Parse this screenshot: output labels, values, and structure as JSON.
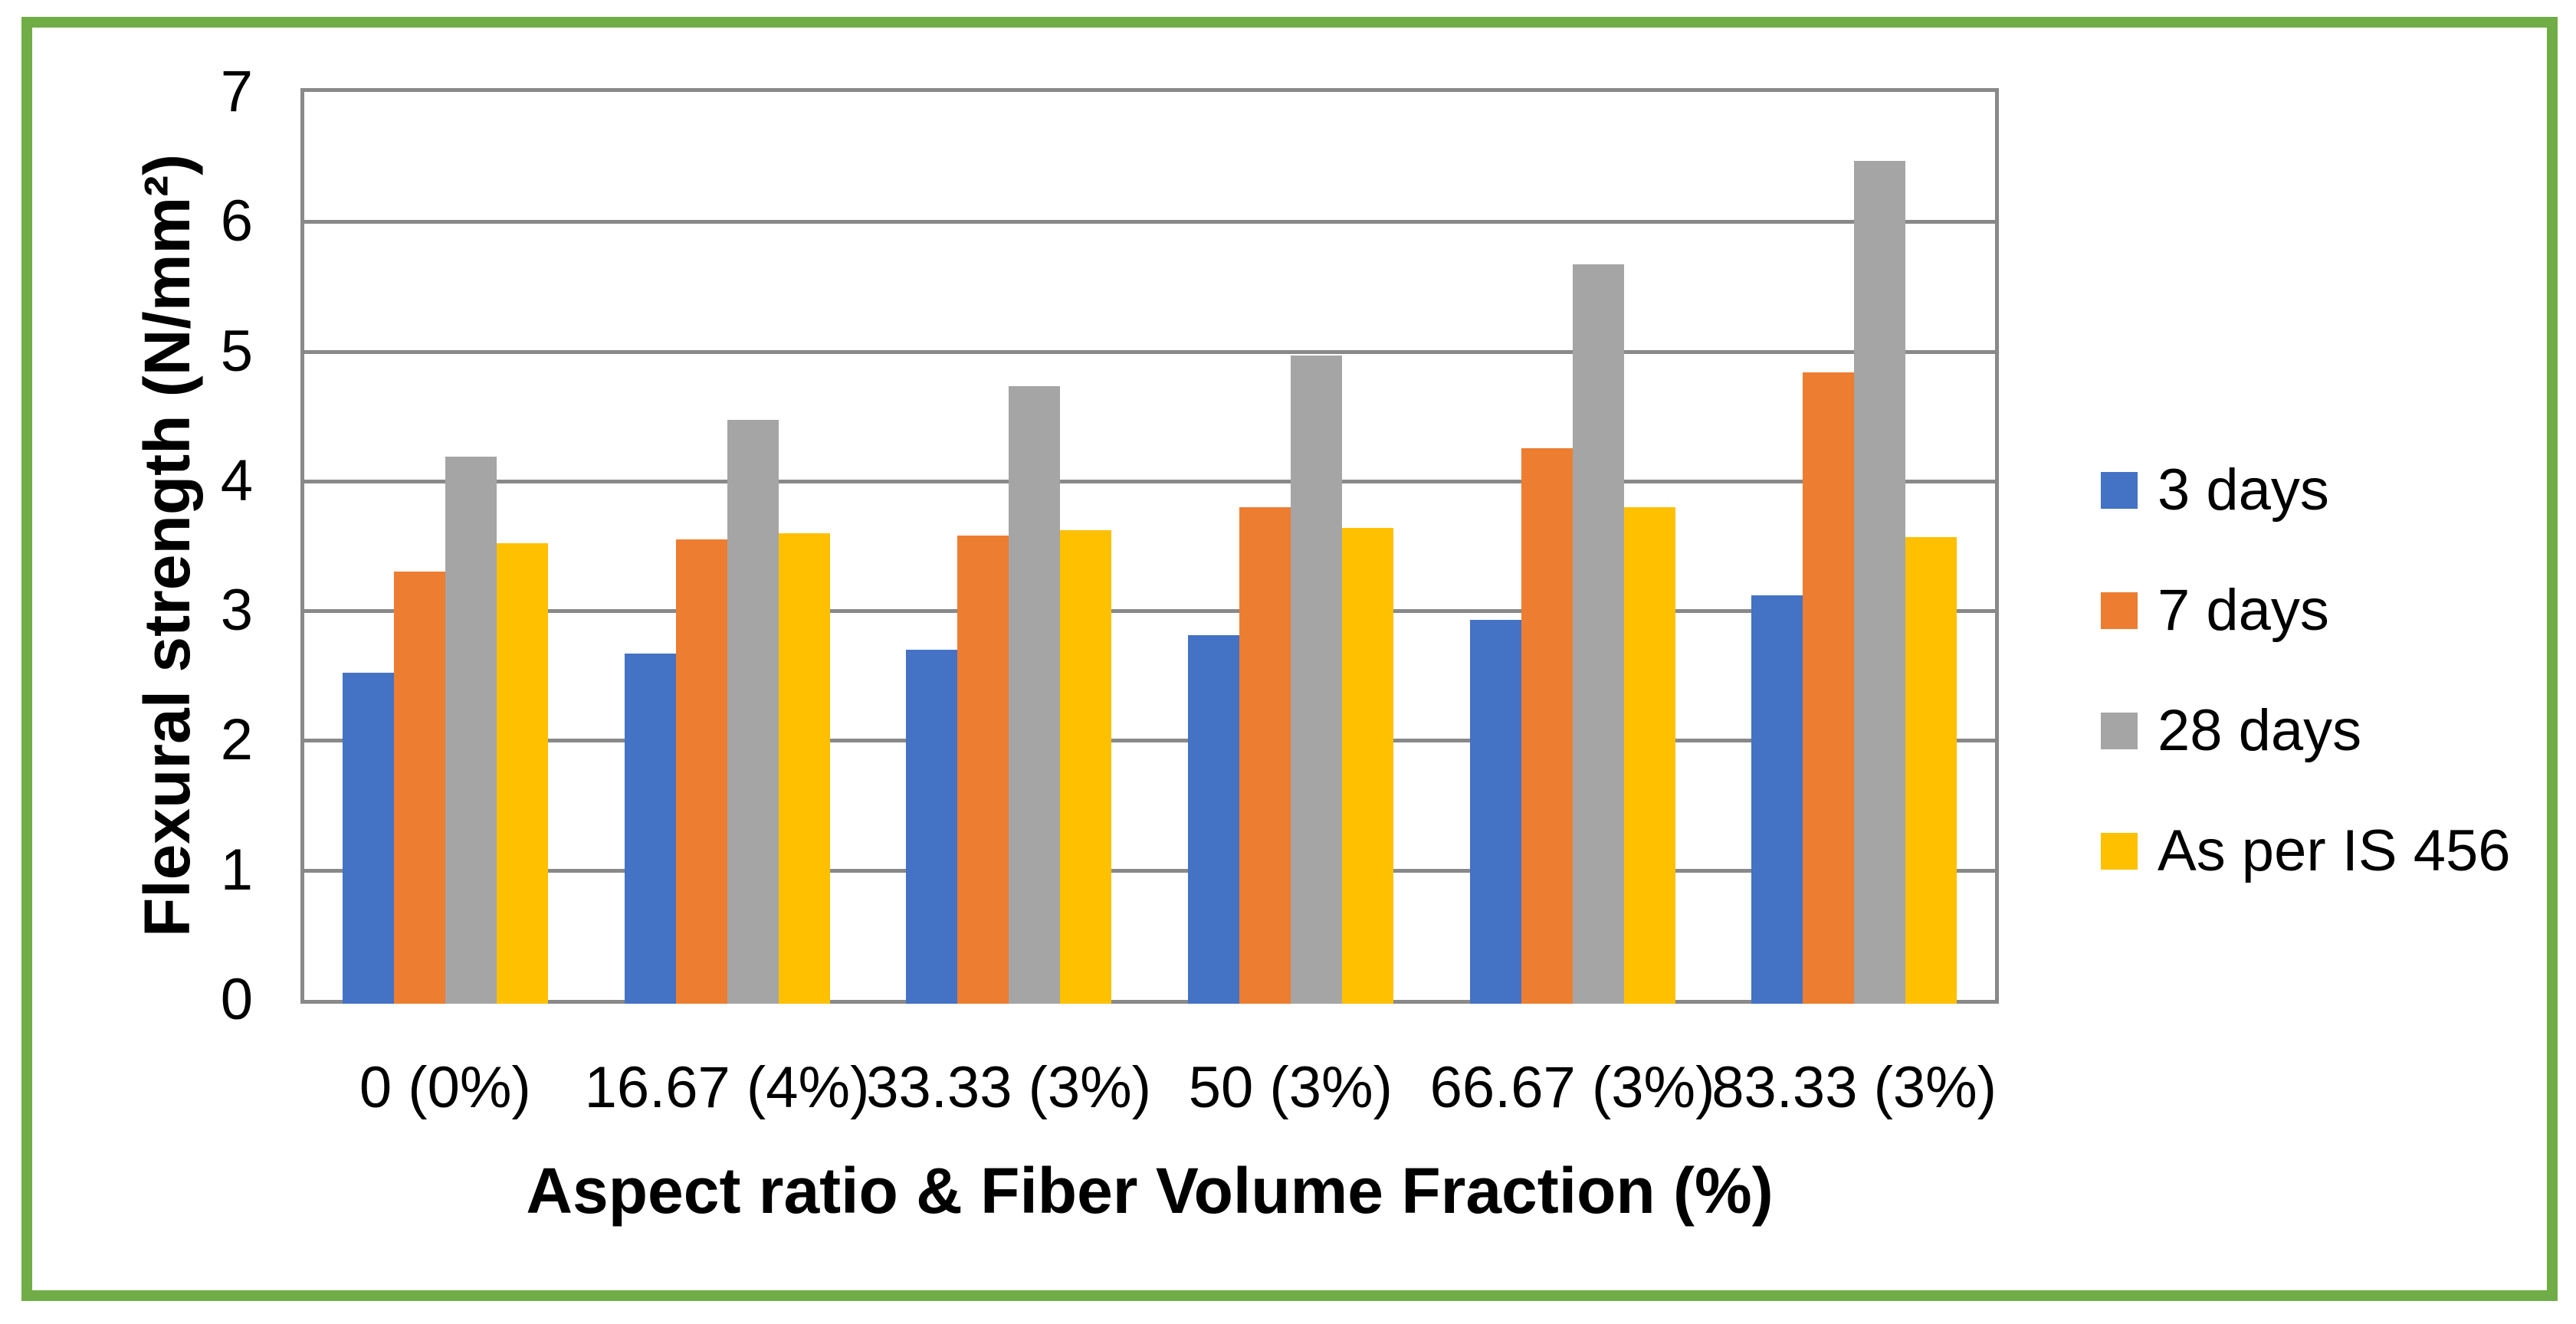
{
  "chart_data": {
    "type": "bar",
    "title": "",
    "xlabel": "Aspect ratio & Fiber Volume Fraction (%)",
    "ylabel": "Flexural strength (N/mm²)",
    "categories": [
      "0 (0%)",
      "16.67 (4%)",
      "33.33 (3%)",
      "50 (3%)",
      "66.67 (3%)",
      "83.33 (3%)"
    ],
    "series": [
      {
        "name": "3 days",
        "color": "#4472C4",
        "values": [
          2.55,
          2.7,
          2.73,
          2.84,
          2.96,
          3.15
        ]
      },
      {
        "name": "7 days",
        "color": "#ED7D31",
        "values": [
          3.33,
          3.58,
          3.61,
          3.83,
          4.28,
          4.87
        ]
      },
      {
        "name": "28 days",
        "color": "#A5A5A5",
        "values": [
          4.22,
          4.5,
          4.76,
          5.0,
          5.7,
          6.5
        ]
      },
      {
        "name": "As per IS 456",
        "color": "#FFC000",
        "values": [
          3.55,
          3.63,
          3.65,
          3.67,
          3.83,
          3.6
        ]
      }
    ],
    "ylim": [
      0,
      7
    ],
    "yticks": [
      0,
      1,
      2,
      3,
      4,
      5,
      6,
      7
    ],
    "grid": true,
    "legend_position": "right",
    "frame_border_color": "#70AD47",
    "axis_color": "#898989",
    "background_color": "#FFFFFF"
  }
}
